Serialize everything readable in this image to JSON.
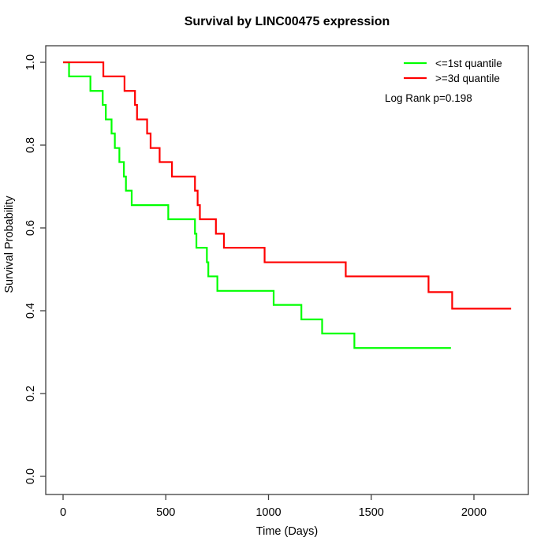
{
  "title": "Survival by LINC00475 expression",
  "axes": {
    "xlabel": "Time (Days)",
    "ylabel": "Survival Probability"
  },
  "legend": {
    "items": [
      {
        "label": "<=1st quantile",
        "color": "#00ff00"
      },
      {
        "label": ">=3d quantile",
        "color": "#ff0000"
      }
    ],
    "note": "Log Rank p=0.198"
  },
  "chart_data": {
    "type": "line",
    "subtype": "kaplan-meier-step",
    "title": "Survival by LINC00475 expression",
    "xlabel": "Time (Days)",
    "ylabel": "Survival Probability",
    "xlim": [
      0,
      2200
    ],
    "ylim": [
      0.0,
      1.0
    ],
    "x_ticks": [
      0,
      500,
      1000,
      1500,
      2000
    ],
    "y_ticks": [
      0.0,
      0.2,
      0.4,
      0.6,
      0.8,
      1.0
    ],
    "grid": false,
    "legend_position": "top-right",
    "annotation": "Log Rank p=0.198",
    "series": [
      {
        "name": "<=1st quantile",
        "color": "#00ff00",
        "steps": [
          [
            0,
            1.0
          ],
          [
            29,
            0.966
          ],
          [
            133,
            0.931
          ],
          [
            193,
            0.897
          ],
          [
            208,
            0.862
          ],
          [
            236,
            0.828
          ],
          [
            252,
            0.793
          ],
          [
            274,
            0.759
          ],
          [
            296,
            0.724
          ],
          [
            306,
            0.69
          ],
          [
            334,
            0.655
          ],
          [
            512,
            0.621
          ],
          [
            642,
            0.586
          ],
          [
            649,
            0.552
          ],
          [
            700,
            0.517
          ],
          [
            707,
            0.483
          ],
          [
            751,
            0.448
          ],
          [
            1025,
            0.414
          ],
          [
            1160,
            0.379
          ],
          [
            1261,
            0.345
          ],
          [
            1418,
            0.31
          ]
        ],
        "end_time": 1888
      },
      {
        "name": ">=3d quantile",
        "color": "#ff0000",
        "steps": [
          [
            0,
            1.0
          ],
          [
            196,
            0.966
          ],
          [
            299,
            0.931
          ],
          [
            350,
            0.897
          ],
          [
            360,
            0.862
          ],
          [
            409,
            0.828
          ],
          [
            426,
            0.793
          ],
          [
            470,
            0.759
          ],
          [
            530,
            0.724
          ],
          [
            642,
            0.69
          ],
          [
            655,
            0.655
          ],
          [
            666,
            0.621
          ],
          [
            744,
            0.586
          ],
          [
            783,
            0.552
          ],
          [
            981,
            0.517
          ],
          [
            1376,
            0.483
          ],
          [
            1779,
            0.445
          ],
          [
            1894,
            0.405
          ]
        ],
        "end_time": 2181
      }
    ]
  }
}
